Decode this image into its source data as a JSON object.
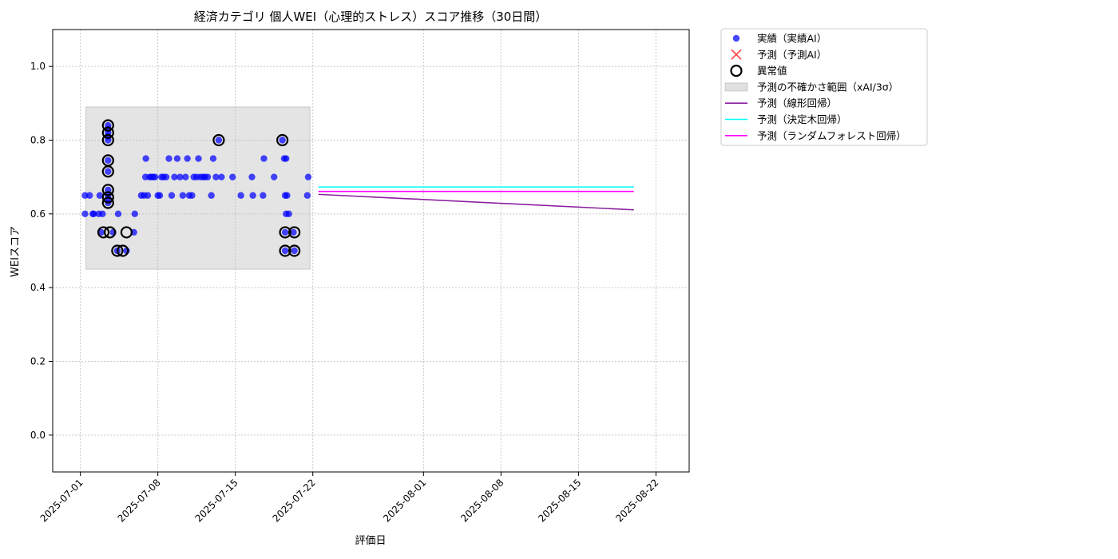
{
  "chart_data": {
    "type": "scatter",
    "title": "経済カテゴリ 個人WEI（心理的ストレス）スコア推移（30日間）",
    "xlabel": "評価日",
    "ylabel": "WEIスコア",
    "xlim": [
      "2025-06-28T12:00",
      "2025-08-25T00:00"
    ],
    "ylim": [
      -0.1,
      1.1
    ],
    "grid": true,
    "legend_position": "outside-right",
    "x_ticks": [
      "2025-07-01",
      "2025-07-08",
      "2025-07-15",
      "2025-07-22",
      "2025-08-01",
      "2025-08-08",
      "2025-08-15",
      "2025-08-22"
    ],
    "y_ticks": [
      0.0,
      0.2,
      0.4,
      0.6,
      0.8,
      1.0
    ],
    "legend": [
      {
        "label": "実績（実績AI）",
        "marker": "dot",
        "color": "#0000ff"
      },
      {
        "label": "予測（予測AI）",
        "marker": "x",
        "color": "#ff3333"
      },
      {
        "label": "異常値",
        "marker": "ring",
        "color": "#000000"
      },
      {
        "label": "予測の不確かさ範囲（xAI/3σ）",
        "marker": "band",
        "color": "#bbbbbb"
      },
      {
        "label": "予測（線形回帰）",
        "marker": "line",
        "color": "#8b1fa0"
      },
      {
        "label": "予測（決定木回帰）",
        "marker": "line",
        "color": "#00ffff"
      },
      {
        "label": "予測（ランダムフォレスト回帰）",
        "marker": "line",
        "color": "#ff00ff"
      }
    ],
    "uncertainty_band": {
      "x": [
        "2025-07-01T12:00",
        "2025-07-21T18:00"
      ],
      "y": [
        0.45,
        0.89
      ]
    },
    "actual": [
      {
        "x": "2025-07-01T10:00",
        "y": 0.6
      },
      {
        "x": "2025-07-01T10:00",
        "y": 0.65
      },
      {
        "x": "2025-07-01T20:00",
        "y": 0.65
      },
      {
        "x": "2025-07-02T03:00",
        "y": 0.6
      },
      {
        "x": "2025-07-02T05:00",
        "y": 0.6
      },
      {
        "x": "2025-07-02T16:00",
        "y": 0.6
      },
      {
        "x": "2025-07-02T18:00",
        "y": 0.65
      },
      {
        "x": "2025-07-02T21:00",
        "y": 0.55
      },
      {
        "x": "2025-07-03T00:00",
        "y": 0.6
      },
      {
        "x": "2025-07-03T12:00",
        "y": 0.84
      },
      {
        "x": "2025-07-03T12:00",
        "y": 0.83
      },
      {
        "x": "2025-07-03T12:00",
        "y": 0.82
      },
      {
        "x": "2025-07-03T12:00",
        "y": 0.81
      },
      {
        "x": "2025-07-03T12:00",
        "y": 0.8
      },
      {
        "x": "2025-07-03T12:00",
        "y": 0.745
      },
      {
        "x": "2025-07-03T12:00",
        "y": 0.715
      },
      {
        "x": "2025-07-03T12:00",
        "y": 0.665
      },
      {
        "x": "2025-07-03T12:00",
        "y": 0.65
      },
      {
        "x": "2025-07-03T12:00",
        "y": 0.64
      },
      {
        "x": "2025-07-03T12:00",
        "y": 0.63
      },
      {
        "x": "2025-07-03T23:00",
        "y": 0.55
      },
      {
        "x": "2025-07-04T08:00",
        "y": 0.5
      },
      {
        "x": "2025-07-04T10:00",
        "y": 0.6
      },
      {
        "x": "2025-07-05T04:00",
        "y": 0.5
      },
      {
        "x": "2025-07-05T20:00",
        "y": 0.55
      },
      {
        "x": "2025-07-05T22:00",
        "y": 0.6
      },
      {
        "x": "2025-07-06T12:00",
        "y": 0.65
      },
      {
        "x": "2025-07-06T18:00",
        "y": 0.65
      },
      {
        "x": "2025-07-06T21:00",
        "y": 0.7
      },
      {
        "x": "2025-07-06T22:00",
        "y": 0.75
      },
      {
        "x": "2025-07-07T02:00",
        "y": 0.65
      },
      {
        "x": "2025-07-07T06:00",
        "y": 0.7
      },
      {
        "x": "2025-07-07T10:00",
        "y": 0.7
      },
      {
        "x": "2025-07-07T14:00",
        "y": 0.7
      },
      {
        "x": "2025-07-07T18:00",
        "y": 0.7
      },
      {
        "x": "2025-07-08T00:00",
        "y": 0.65
      },
      {
        "x": "2025-07-08T04:00",
        "y": 0.65
      },
      {
        "x": "2025-07-08T08:00",
        "y": 0.7
      },
      {
        "x": "2025-07-08T12:00",
        "y": 0.7
      },
      {
        "x": "2025-07-08T18:00",
        "y": 0.7
      },
      {
        "x": "2025-07-09T00:00",
        "y": 0.75
      },
      {
        "x": "2025-07-09T06:00",
        "y": 0.65
      },
      {
        "x": "2025-07-09T12:00",
        "y": 0.7
      },
      {
        "x": "2025-07-09T18:00",
        "y": 0.75
      },
      {
        "x": "2025-07-10T00:00",
        "y": 0.7
      },
      {
        "x": "2025-07-10T06:00",
        "y": 0.65
      },
      {
        "x": "2025-07-10T12:00",
        "y": 0.7
      },
      {
        "x": "2025-07-10T16:00",
        "y": 0.75
      },
      {
        "x": "2025-07-10T20:00",
        "y": 0.65
      },
      {
        "x": "2025-07-11T02:00",
        "y": 0.65
      },
      {
        "x": "2025-07-11T06:00",
        "y": 0.7
      },
      {
        "x": "2025-07-11T12:00",
        "y": 0.7
      },
      {
        "x": "2025-07-11T16:00",
        "y": 0.75
      },
      {
        "x": "2025-07-11T20:00",
        "y": 0.7
      },
      {
        "x": "2025-07-12T02:00",
        "y": 0.7
      },
      {
        "x": "2025-07-12T06:00",
        "y": 0.7
      },
      {
        "x": "2025-07-12T12:00",
        "y": 0.7
      },
      {
        "x": "2025-07-12T20:00",
        "y": 0.65
      },
      {
        "x": "2025-07-13T00:00",
        "y": 0.75
      },
      {
        "x": "2025-07-13T06:00",
        "y": 0.7
      },
      {
        "x": "2025-07-13T12:00",
        "y": 0.8
      },
      {
        "x": "2025-07-13T18:00",
        "y": 0.7
      },
      {
        "x": "2025-07-14T18:00",
        "y": 0.7
      },
      {
        "x": "2025-07-15T12:00",
        "y": 0.65
      },
      {
        "x": "2025-07-16T12:00",
        "y": 0.7
      },
      {
        "x": "2025-07-16T14:00",
        "y": 0.65
      },
      {
        "x": "2025-07-17T12:00",
        "y": 0.65
      },
      {
        "x": "2025-07-17T14:00",
        "y": 0.75
      },
      {
        "x": "2025-07-18T12:00",
        "y": 0.7
      },
      {
        "x": "2025-07-19T06:00",
        "y": 0.8
      },
      {
        "x": "2025-07-19T10:00",
        "y": 0.75
      },
      {
        "x": "2025-07-19T12:00",
        "y": 0.65
      },
      {
        "x": "2025-07-19T14:00",
        "y": 0.75
      },
      {
        "x": "2025-07-19T14:00",
        "y": 0.6
      },
      {
        "x": "2025-07-19T12:00",
        "y": 0.55
      },
      {
        "x": "2025-07-19T12:00",
        "y": 0.5
      },
      {
        "x": "2025-07-19T16:00",
        "y": 0.65
      },
      {
        "x": "2025-07-19T20:00",
        "y": 0.6
      },
      {
        "x": "2025-07-20T06:00",
        "y": 0.55
      },
      {
        "x": "2025-07-20T08:00",
        "y": 0.5
      },
      {
        "x": "2025-07-21T12:00",
        "y": 0.65
      },
      {
        "x": "2025-07-21T14:00",
        "y": 0.7
      }
    ],
    "anomalies": [
      {
        "x": "2025-07-03T12:00",
        "y": 0.84
      },
      {
        "x": "2025-07-03T12:00",
        "y": 0.82
      },
      {
        "x": "2025-07-03T12:00",
        "y": 0.8
      },
      {
        "x": "2025-07-03T12:00",
        "y": 0.745
      },
      {
        "x": "2025-07-03T12:00",
        "y": 0.715
      },
      {
        "x": "2025-07-03T12:00",
        "y": 0.665
      },
      {
        "x": "2025-07-03T12:00",
        "y": 0.645
      },
      {
        "x": "2025-07-03T12:00",
        "y": 0.63
      },
      {
        "x": "2025-07-03T02:00",
        "y": 0.55
      },
      {
        "x": "2025-07-03T16:00",
        "y": 0.55
      },
      {
        "x": "2025-07-04T08:00",
        "y": 0.5
      },
      {
        "x": "2025-07-04T20:00",
        "y": 0.5
      },
      {
        "x": "2025-07-05T04:00",
        "y": 0.55
      },
      {
        "x": "2025-07-13T12:00",
        "y": 0.8
      },
      {
        "x": "2025-07-19T06:00",
        "y": 0.8
      },
      {
        "x": "2025-07-19T12:00",
        "y": 0.55
      },
      {
        "x": "2025-07-19T12:00",
        "y": 0.5
      },
      {
        "x": "2025-07-20T08:00",
        "y": 0.55
      },
      {
        "x": "2025-07-20T08:00",
        "y": 0.5
      }
    ],
    "predictions": [
      {
        "label": "予測（線形回帰）",
        "color": "#8b1fa0",
        "x": [
          "2025-07-22T12:00",
          "2025-08-20T00:00"
        ],
        "y": [
          0.653,
          0.611
        ]
      },
      {
        "label": "予測（決定木回帰）",
        "color": "#00ffff",
        "x": [
          "2025-07-22T12:00",
          "2025-08-20T00:00"
        ],
        "y": [
          0.673,
          0.673
        ]
      },
      {
        "label": "予測（ランダムフォレスト回帰）",
        "color": "#ff00ff",
        "x": [
          "2025-07-22T12:00",
          "2025-08-20T00:00"
        ],
        "y": [
          0.661,
          0.661
        ]
      }
    ],
    "style": {
      "actual_color": "#0000ff",
      "anomaly_color": "#000000",
      "band_color": "#bbbbbb",
      "grid_color": "#c8c8c8"
    }
  }
}
